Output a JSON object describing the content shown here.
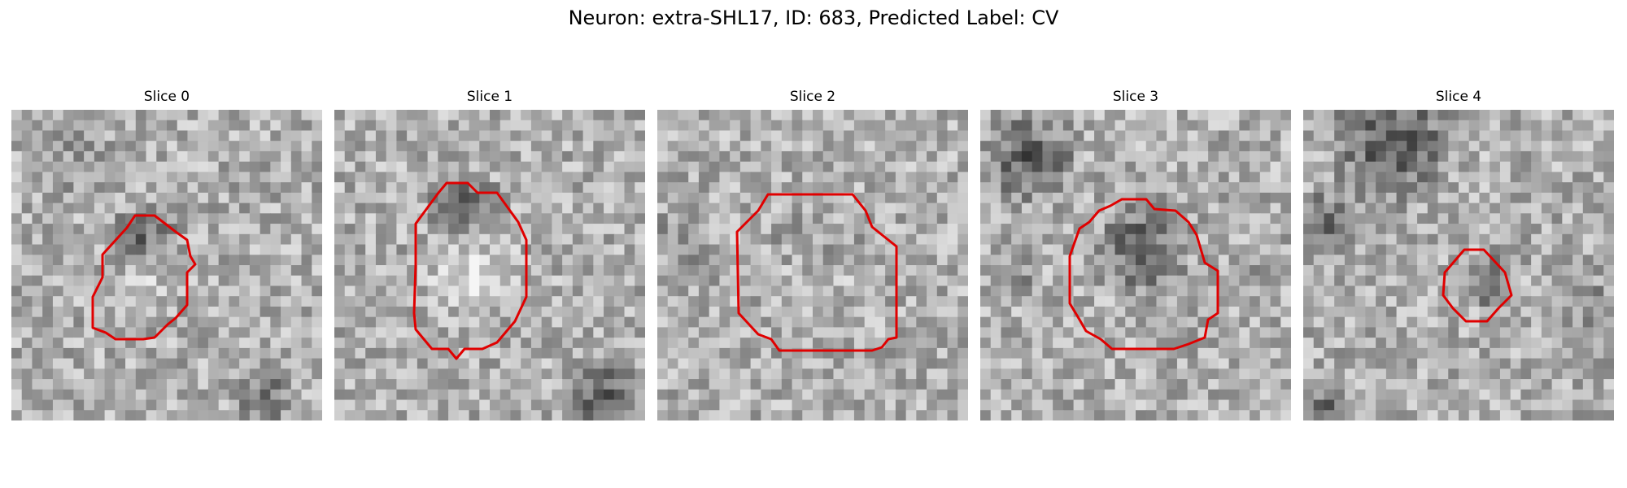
{
  "figure": {
    "title": "Neuron: extra-SHL17, ID: 683, Predicted Label: CV",
    "contour_color": "#e00000"
  },
  "panels": [
    {
      "title": "Slice 0"
    },
    {
      "title": "Slice 1"
    },
    {
      "title": "Slice 2"
    },
    {
      "title": "Slice 3"
    },
    {
      "title": "Slice 4"
    }
  ]
}
